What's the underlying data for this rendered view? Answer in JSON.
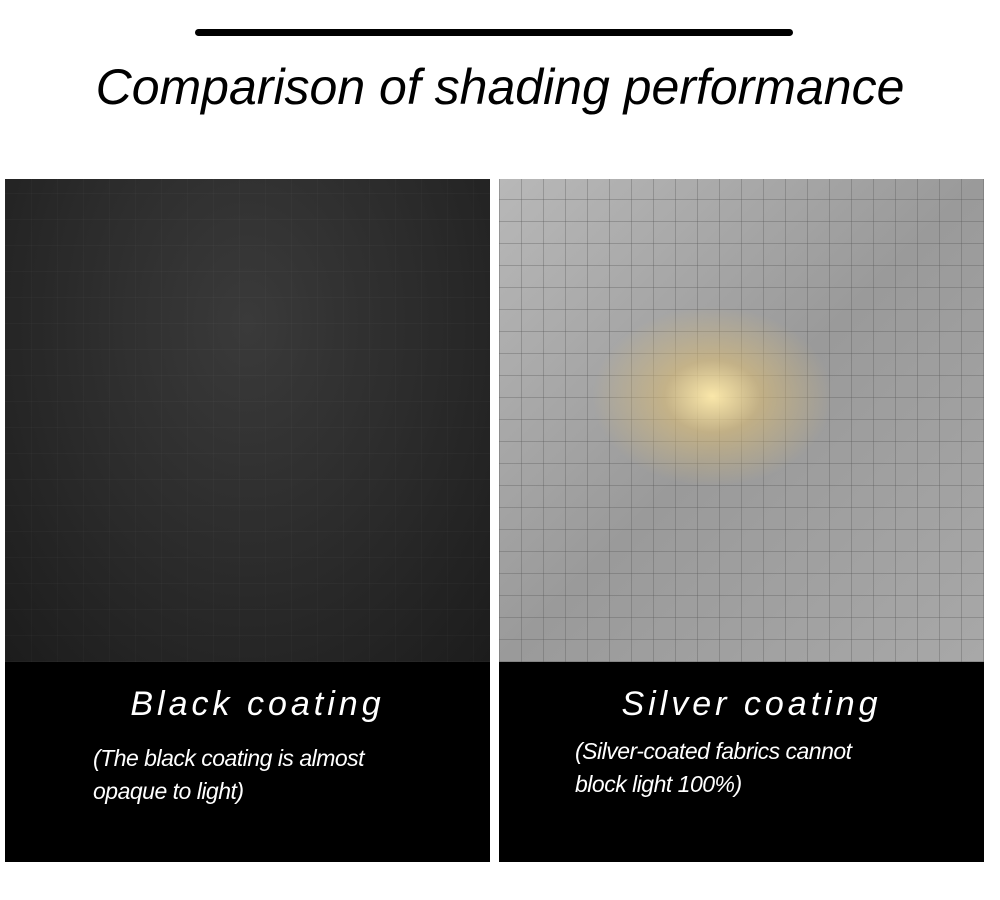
{
  "title": "Comparison of shading performance",
  "panels": [
    {
      "heading": "Black coating",
      "caption_line1": "(The black coating is almost",
      "caption_line2": "opaque to light)"
    },
    {
      "heading": "Silver coating",
      "caption_line1": "(Silver-coated fabrics cannot",
      "caption_line2": "block light 100%)"
    }
  ],
  "colors": {
    "background": "#ffffff",
    "caption_panel": "#000000",
    "text": "#ffffff"
  }
}
